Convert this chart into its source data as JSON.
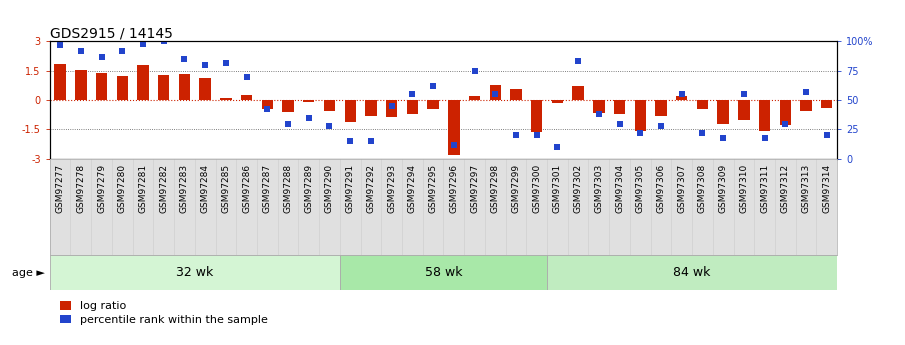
{
  "title": "GDS2915 / 14145",
  "samples": [
    "GSM97277",
    "GSM97278",
    "GSM97279",
    "GSM97280",
    "GSM97281",
    "GSM97282",
    "GSM97283",
    "GSM97284",
    "GSM97285",
    "GSM97286",
    "GSM97287",
    "GSM97288",
    "GSM97289",
    "GSM97290",
    "GSM97291",
    "GSM97292",
    "GSM97293",
    "GSM97294",
    "GSM97295",
    "GSM97296",
    "GSM97297",
    "GSM97298",
    "GSM97299",
    "GSM97300",
    "GSM97301",
    "GSM97302",
    "GSM97303",
    "GSM97304",
    "GSM97305",
    "GSM97306",
    "GSM97307",
    "GSM97308",
    "GSM97309",
    "GSM97310",
    "GSM97311",
    "GSM97312",
    "GSM97313",
    "GSM97314"
  ],
  "log_ratio": [
    1.85,
    1.55,
    1.38,
    1.22,
    1.8,
    1.28,
    1.35,
    1.15,
    0.12,
    0.28,
    -0.45,
    -0.62,
    -0.12,
    -0.55,
    -1.1,
    -0.8,
    -0.88,
    -0.7,
    -0.45,
    -2.8,
    0.22,
    0.75,
    0.58,
    -1.65,
    -0.15,
    0.7,
    -0.65,
    -0.7,
    -1.6,
    -0.8,
    0.22,
    -0.45,
    -1.25,
    -1.0,
    -1.6,
    -1.3,
    -0.55,
    -0.42
  ],
  "percentile": [
    97,
    92,
    87,
    92,
    98,
    100,
    85,
    80,
    82,
    70,
    42,
    30,
    35,
    28,
    15,
    15,
    45,
    55,
    62,
    12,
    75,
    55,
    20,
    20,
    10,
    83,
    38,
    30,
    22,
    28,
    55,
    22,
    18,
    55,
    18,
    30,
    57,
    20
  ],
  "groups": [
    {
      "label": "32 wk",
      "start": 0,
      "end": 14,
      "color": "#d4f5d4"
    },
    {
      "label": "58 wk",
      "start": 14,
      "end": 24,
      "color": "#a8e8a8"
    },
    {
      "label": "84 wk",
      "start": 24,
      "end": 38,
      "color": "#c0ecc0"
    }
  ],
  "ylim_left": [
    -3,
    3
  ],
  "ylim_right": [
    0,
    100
  ],
  "bar_color": "#cc2200",
  "dot_color": "#2244cc",
  "bg_color": "#ffffff",
  "xtick_bg": "#e0e0e0",
  "title_fontsize": 10,
  "tick_fontsize": 7,
  "label_fontsize": 6.5,
  "group_label_fontsize": 9,
  "legend_fontsize": 8,
  "age_label": "age",
  "legend_items": [
    "log ratio",
    "percentile rank within the sample"
  ]
}
